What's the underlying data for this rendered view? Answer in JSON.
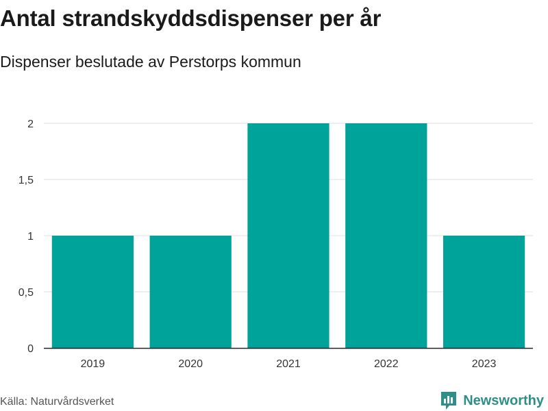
{
  "title": "Antal strandskyddsdispenser per år",
  "subtitle": "Dispenser beslutade av Perstorps kommun",
  "source": "Källa: Naturvårdsverket",
  "brand": {
    "name": "Newsworthy",
    "icon": "bar-chart-logo-icon",
    "color": "#2f8f86"
  },
  "chart_data": {
    "type": "bar",
    "categories": [
      "2019",
      "2020",
      "2021",
      "2022",
      "2023"
    ],
    "values": [
      1,
      1,
      2,
      2,
      1
    ],
    "ylim": [
      0,
      2
    ],
    "yticks": [
      0,
      0.5,
      1,
      1.5,
      2
    ],
    "ytick_labels": [
      "0",
      "0,5",
      "1",
      "1,5",
      "2"
    ],
    "xlabel": "",
    "ylabel": "",
    "grid": true,
    "bar_color": "#00a399"
  }
}
